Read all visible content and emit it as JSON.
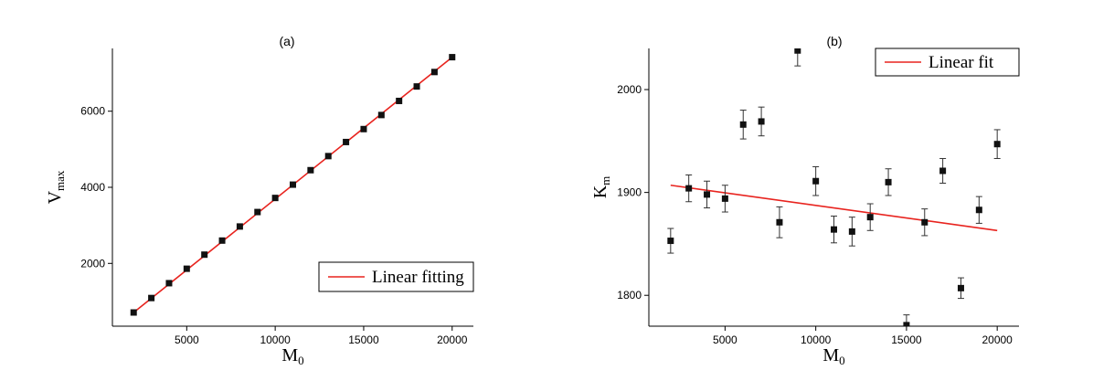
{
  "chart_data": [
    {
      "type": "scatter",
      "title": "(a)",
      "xlabel": {
        "main": "M",
        "sub": "0"
      },
      "ylabel": {
        "main": "V",
        "sub": "max"
      },
      "xlim": [
        800,
        21200
      ],
      "ylim": [
        350,
        7650
      ],
      "xticks": [
        5000,
        10000,
        15000,
        20000
      ],
      "yticks": [
        2000,
        4000,
        6000
      ],
      "xtick_labels": [
        "5000",
        "10000",
        "15000",
        "20000"
      ],
      "ytick_labels": [
        "2000",
        "4000",
        "6000"
      ],
      "grid": false,
      "legend_position": "bottom-right",
      "series": [
        {
          "type": "scatter",
          "x": [
            2000,
            3000,
            4000,
            5000,
            6000,
            7000,
            8000,
            9000,
            10000,
            11000,
            12000,
            13000,
            14000,
            15000,
            16000,
            17000,
            18000,
            19000,
            20000
          ],
          "y": [
            710,
            1090,
            1480,
            1860,
            2230,
            2600,
            2970,
            3350,
            3720,
            4070,
            4450,
            4820,
            5190,
            5530,
            5900,
            6270,
            6650,
            7030,
            7420
          ]
        },
        {
          "type": "line",
          "name": "Linear fitting",
          "color": "#e8231e",
          "x": [
            2000,
            20000
          ],
          "y": [
            710,
            7420
          ]
        }
      ]
    },
    {
      "type": "scatter",
      "title": "(b)",
      "xlabel": {
        "main": "M",
        "sub": "0"
      },
      "ylabel": {
        "main": "K",
        "sub": "m"
      },
      "xlim": [
        800,
        21200
      ],
      "ylim": [
        1770,
        2040
      ],
      "xticks": [
        5000,
        10000,
        15000,
        20000
      ],
      "yticks": [
        1800,
        1900,
        2000
      ],
      "xtick_labels": [
        "5000",
        "10000",
        "15000",
        "20000"
      ],
      "ytick_labels": [
        "1800",
        "1900",
        "2000"
      ],
      "grid": false,
      "legend_position": "top-right",
      "series": [
        {
          "type": "scatter",
          "error_bars": true,
          "x": [
            2000,
            3000,
            4000,
            5000,
            6000,
            7000,
            8000,
            9000,
            10000,
            11000,
            12000,
            13000,
            14000,
            15000,
            16000,
            17000,
            18000,
            19000,
            20000
          ],
          "y": [
            1853,
            1904,
            1898,
            1894,
            1966,
            1969,
            1871,
            2038,
            1911,
            1864,
            1862,
            1876,
            1910,
            1771,
            1871,
            1921,
            1807,
            1883,
            1947
          ],
          "error": [
            12,
            13,
            13,
            13,
            14,
            14,
            15,
            15,
            14,
            13,
            14,
            13,
            13,
            10,
            13,
            12,
            10,
            13,
            14
          ]
        },
        {
          "type": "line",
          "name": "Linear fit",
          "color": "#e8231e",
          "x": [
            2000,
            20000
          ],
          "y": [
            1907,
            1863
          ]
        }
      ]
    }
  ]
}
